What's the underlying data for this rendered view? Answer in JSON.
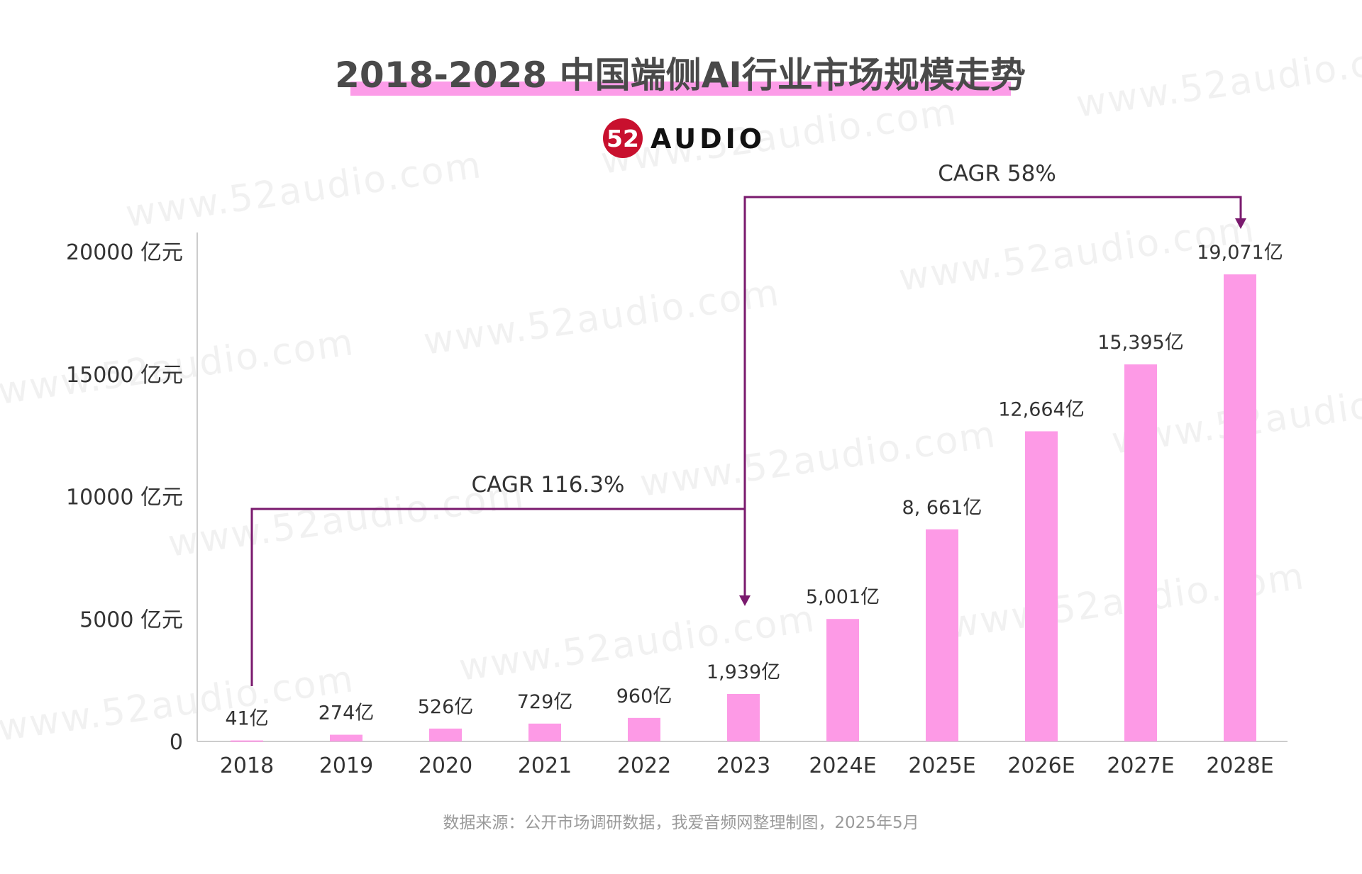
{
  "header": {
    "title": "2018-2028 中国端侧AI行业市场规模走势",
    "logo_mark": "52",
    "logo_text": "AUDIO"
  },
  "watermark": "www.52audio.com",
  "colors": {
    "bar": "#fd9ae6",
    "title_highlight": "#fc9ce8",
    "cagr_line": "#7a1a6e",
    "logo_red": "#c8102e"
  },
  "chart_data": {
    "type": "bar",
    "title": "2018-2028 中国端侧AI行业市场规模走势",
    "xlabel": "",
    "ylabel": "",
    "categories": [
      "2018",
      "2019",
      "2020",
      "2021",
      "2022",
      "2023",
      "2024E",
      "2025E",
      "2026E",
      "2027E",
      "2028E"
    ],
    "values": [
      41,
      274,
      526,
      729,
      960,
      1939,
      5001,
      8661,
      12664,
      15395,
      19071
    ],
    "value_labels": [
      "41亿",
      "274亿",
      "526亿",
      "729亿",
      "960亿",
      "1,939亿",
      "5,001亿",
      "8, 661亿",
      "12,664亿",
      "15,395亿",
      "19,071亿"
    ],
    "ylim": [
      0,
      20000
    ],
    "yticks": [
      0,
      5000,
      10000,
      15000,
      20000
    ],
    "ytick_labels": [
      "0",
      "5000 亿元",
      "10000 亿元",
      "15000 亿元",
      "20000 亿元"
    ],
    "grid": false,
    "legend": "none",
    "annotations": [
      {
        "text": "CAGR 116.3%",
        "from": "2018",
        "to": "2023"
      },
      {
        "text": "CAGR 58%",
        "from": "2023",
        "to": "2028E"
      }
    ]
  },
  "footer": {
    "source": "数据来源：公开市场调研数据，我爱音频网整理制图，2025年5月"
  }
}
